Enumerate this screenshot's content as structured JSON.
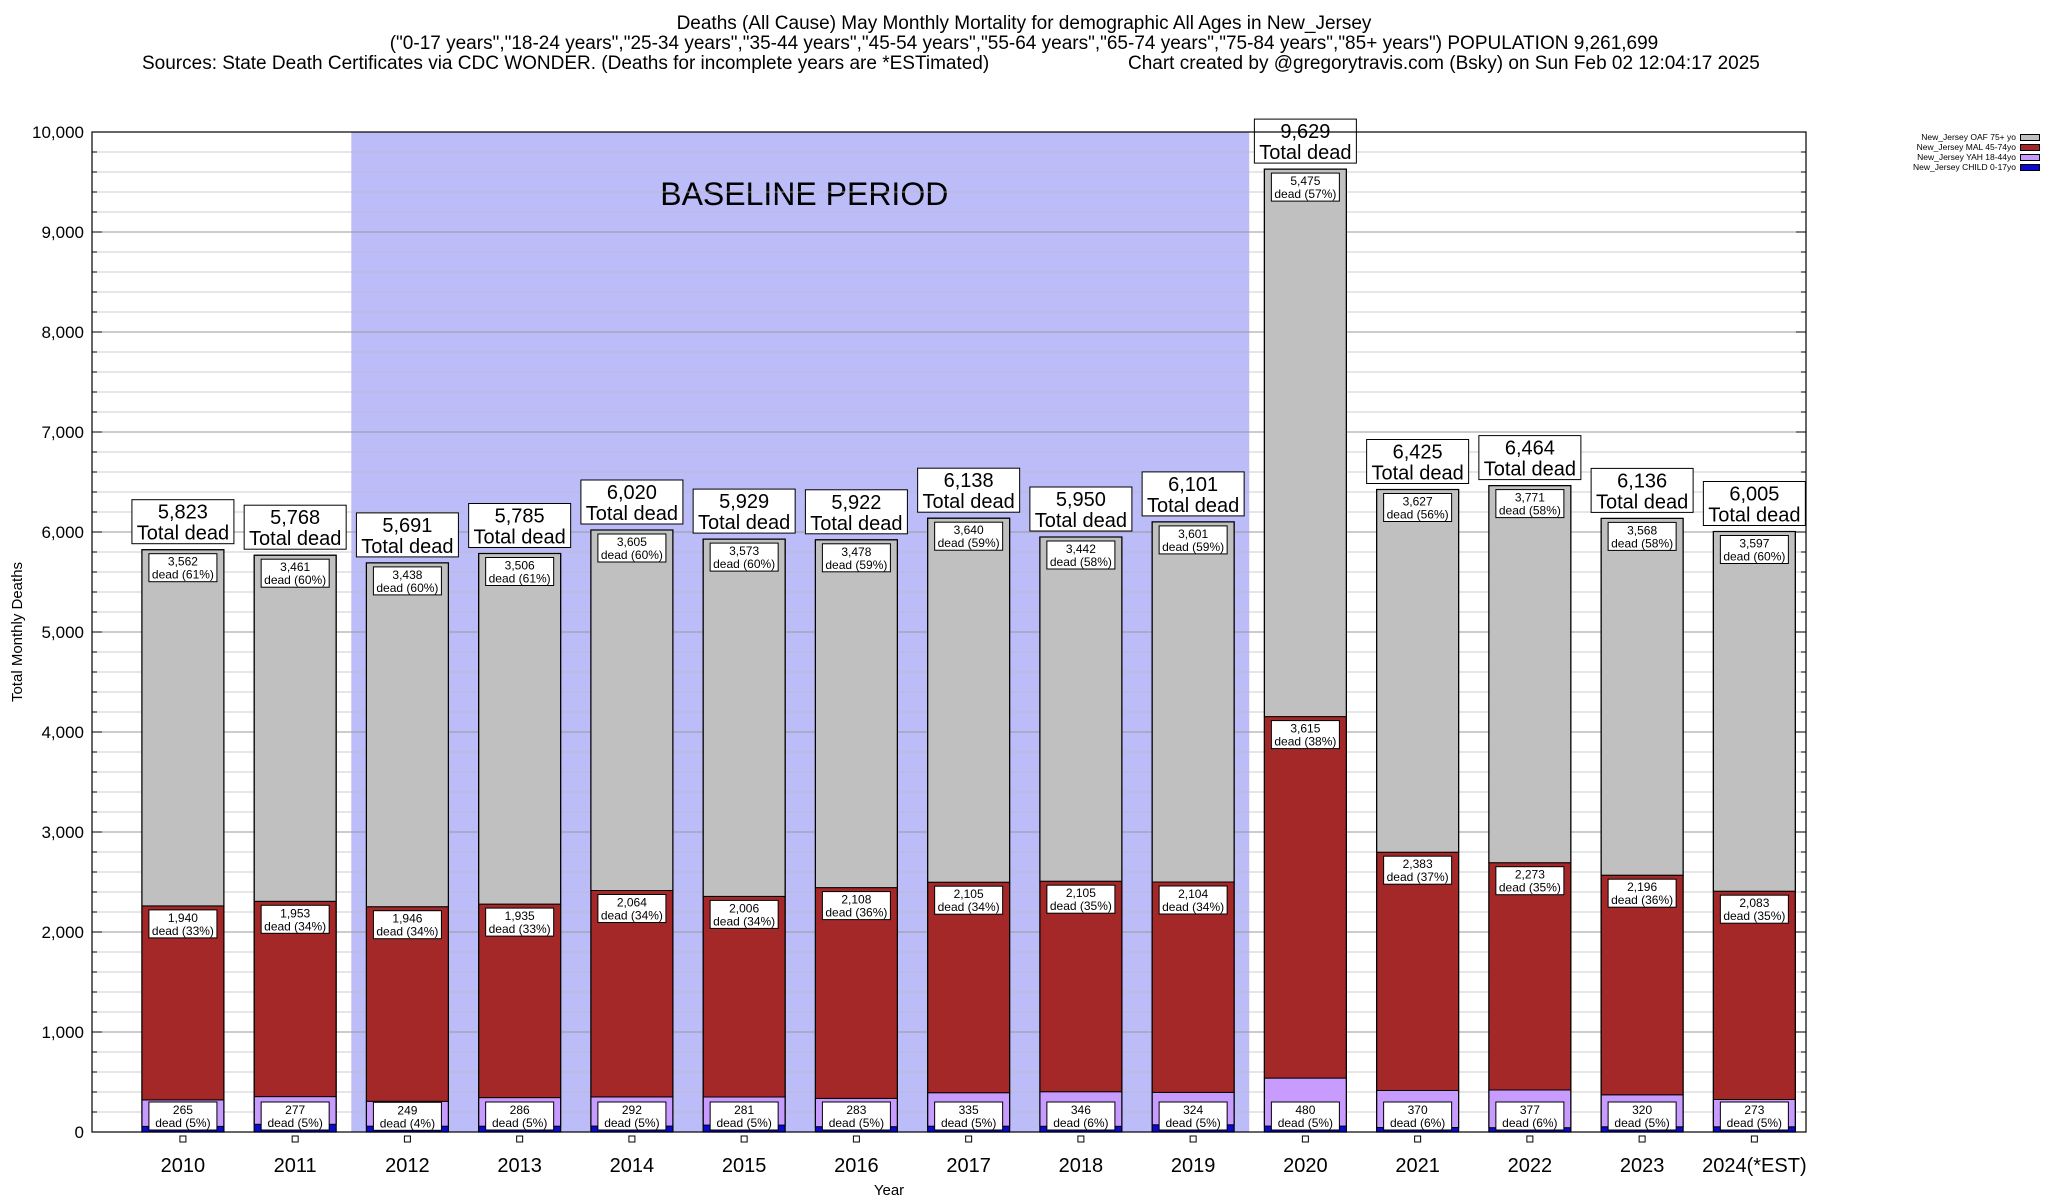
{
  "header": {
    "line1": "Deaths (All Cause) May Monthly Mortality for demographic All Ages in New_Jersey",
    "line2": "(\"0-17 years\",\"18-24 years\",\"25-34 years\",\"35-44 years\",\"45-54 years\",\"55-64 years\",\"65-74 years\",\"75-84 years\",\"85+ years\") POPULATION 9,261,699",
    "line3_left": "Sources: State Death Certificates via CDC WONDER. (Deaths for incomplete years are *ESTimated)",
    "line3_right": "Chart created by @gregorytravis.com (Bsky) on Sun Feb 02 12:04:17 2025"
  },
  "chart_data": {
    "type": "bar",
    "stacked": true,
    "categories": [
      "2010",
      "2011",
      "2012",
      "2013",
      "2014",
      "2015",
      "2016",
      "2017",
      "2018",
      "2019",
      "2020",
      "2021",
      "2022",
      "2023",
      "2024(*EST)"
    ],
    "totals": [
      5823,
      5768,
      5691,
      5785,
      6020,
      5929,
      5922,
      6138,
      5950,
      6101,
      9629,
      6425,
      6464,
      6136,
      6005
    ],
    "total_label": "Total dead",
    "series": [
      {
        "name": "New_Jersey CHILD 0-17yo",
        "color": "#0a0ad2",
        "values": [
          56,
          77,
          58,
          58,
          59,
          69,
          53,
          58,
          57,
          72,
          59,
          45,
          43,
          52,
          52
        ]
      },
      {
        "name": "New_Jersey YAH 18-44yo",
        "color": "#c89bff",
        "values": [
          265,
          277,
          249,
          286,
          292,
          281,
          283,
          335,
          346,
          324,
          480,
          370,
          377,
          320,
          273
        ],
        "pct": [
          "5%",
          "5%",
          "4%",
          "5%",
          "5%",
          "5%",
          "5%",
          "5%",
          "6%",
          "5%",
          "5%",
          "6%",
          "6%",
          "5%",
          "5%"
        ]
      },
      {
        "name": "New_Jersey MAL 45-74yo",
        "color": "#a42828",
        "values": [
          1940,
          1953,
          1946,
          1935,
          2064,
          2006,
          2108,
          2105,
          2105,
          2104,
          3615,
          2383,
          2273,
          2196,
          2083
        ],
        "pct": [
          "33%",
          "34%",
          "34%",
          "33%",
          "34%",
          "34%",
          "36%",
          "34%",
          "35%",
          "34%",
          "38%",
          "37%",
          "35%",
          "36%",
          "35%"
        ]
      },
      {
        "name": "New_Jersey OAF 75+ yo",
        "color": "#c0c0c0",
        "values": [
          3562,
          3461,
          3438,
          3506,
          3605,
          3573,
          3478,
          3640,
          3442,
          3601,
          5475,
          3627,
          3771,
          3568,
          3597
        ],
        "pct": [
          "61%",
          "60%",
          "60%",
          "61%",
          "60%",
          "60%",
          "59%",
          "59%",
          "58%",
          "59%",
          "57%",
          "56%",
          "58%",
          "58%",
          "60%"
        ]
      }
    ],
    "segment_label_suffix": "dead",
    "baseline": {
      "label": "BASELINE PERIOD",
      "from": "2012",
      "to": "2019",
      "color": "#bcbcf8"
    },
    "xlabel": "Year",
    "ylabel": "Total Monthly Deaths",
    "ylim": [
      0,
      10000
    ],
    "yticks": [
      0,
      1000,
      2000,
      3000,
      4000,
      5000,
      6000,
      7000,
      8000,
      9000,
      10000
    ],
    "ytick_labels": [
      "0",
      "1,000",
      "2,000",
      "3,000",
      "4,000",
      "5,000",
      "6,000",
      "7,000",
      "8,000",
      "9,000",
      "10,000"
    ],
    "grid": true,
    "legend_placement": "top-right"
  }
}
